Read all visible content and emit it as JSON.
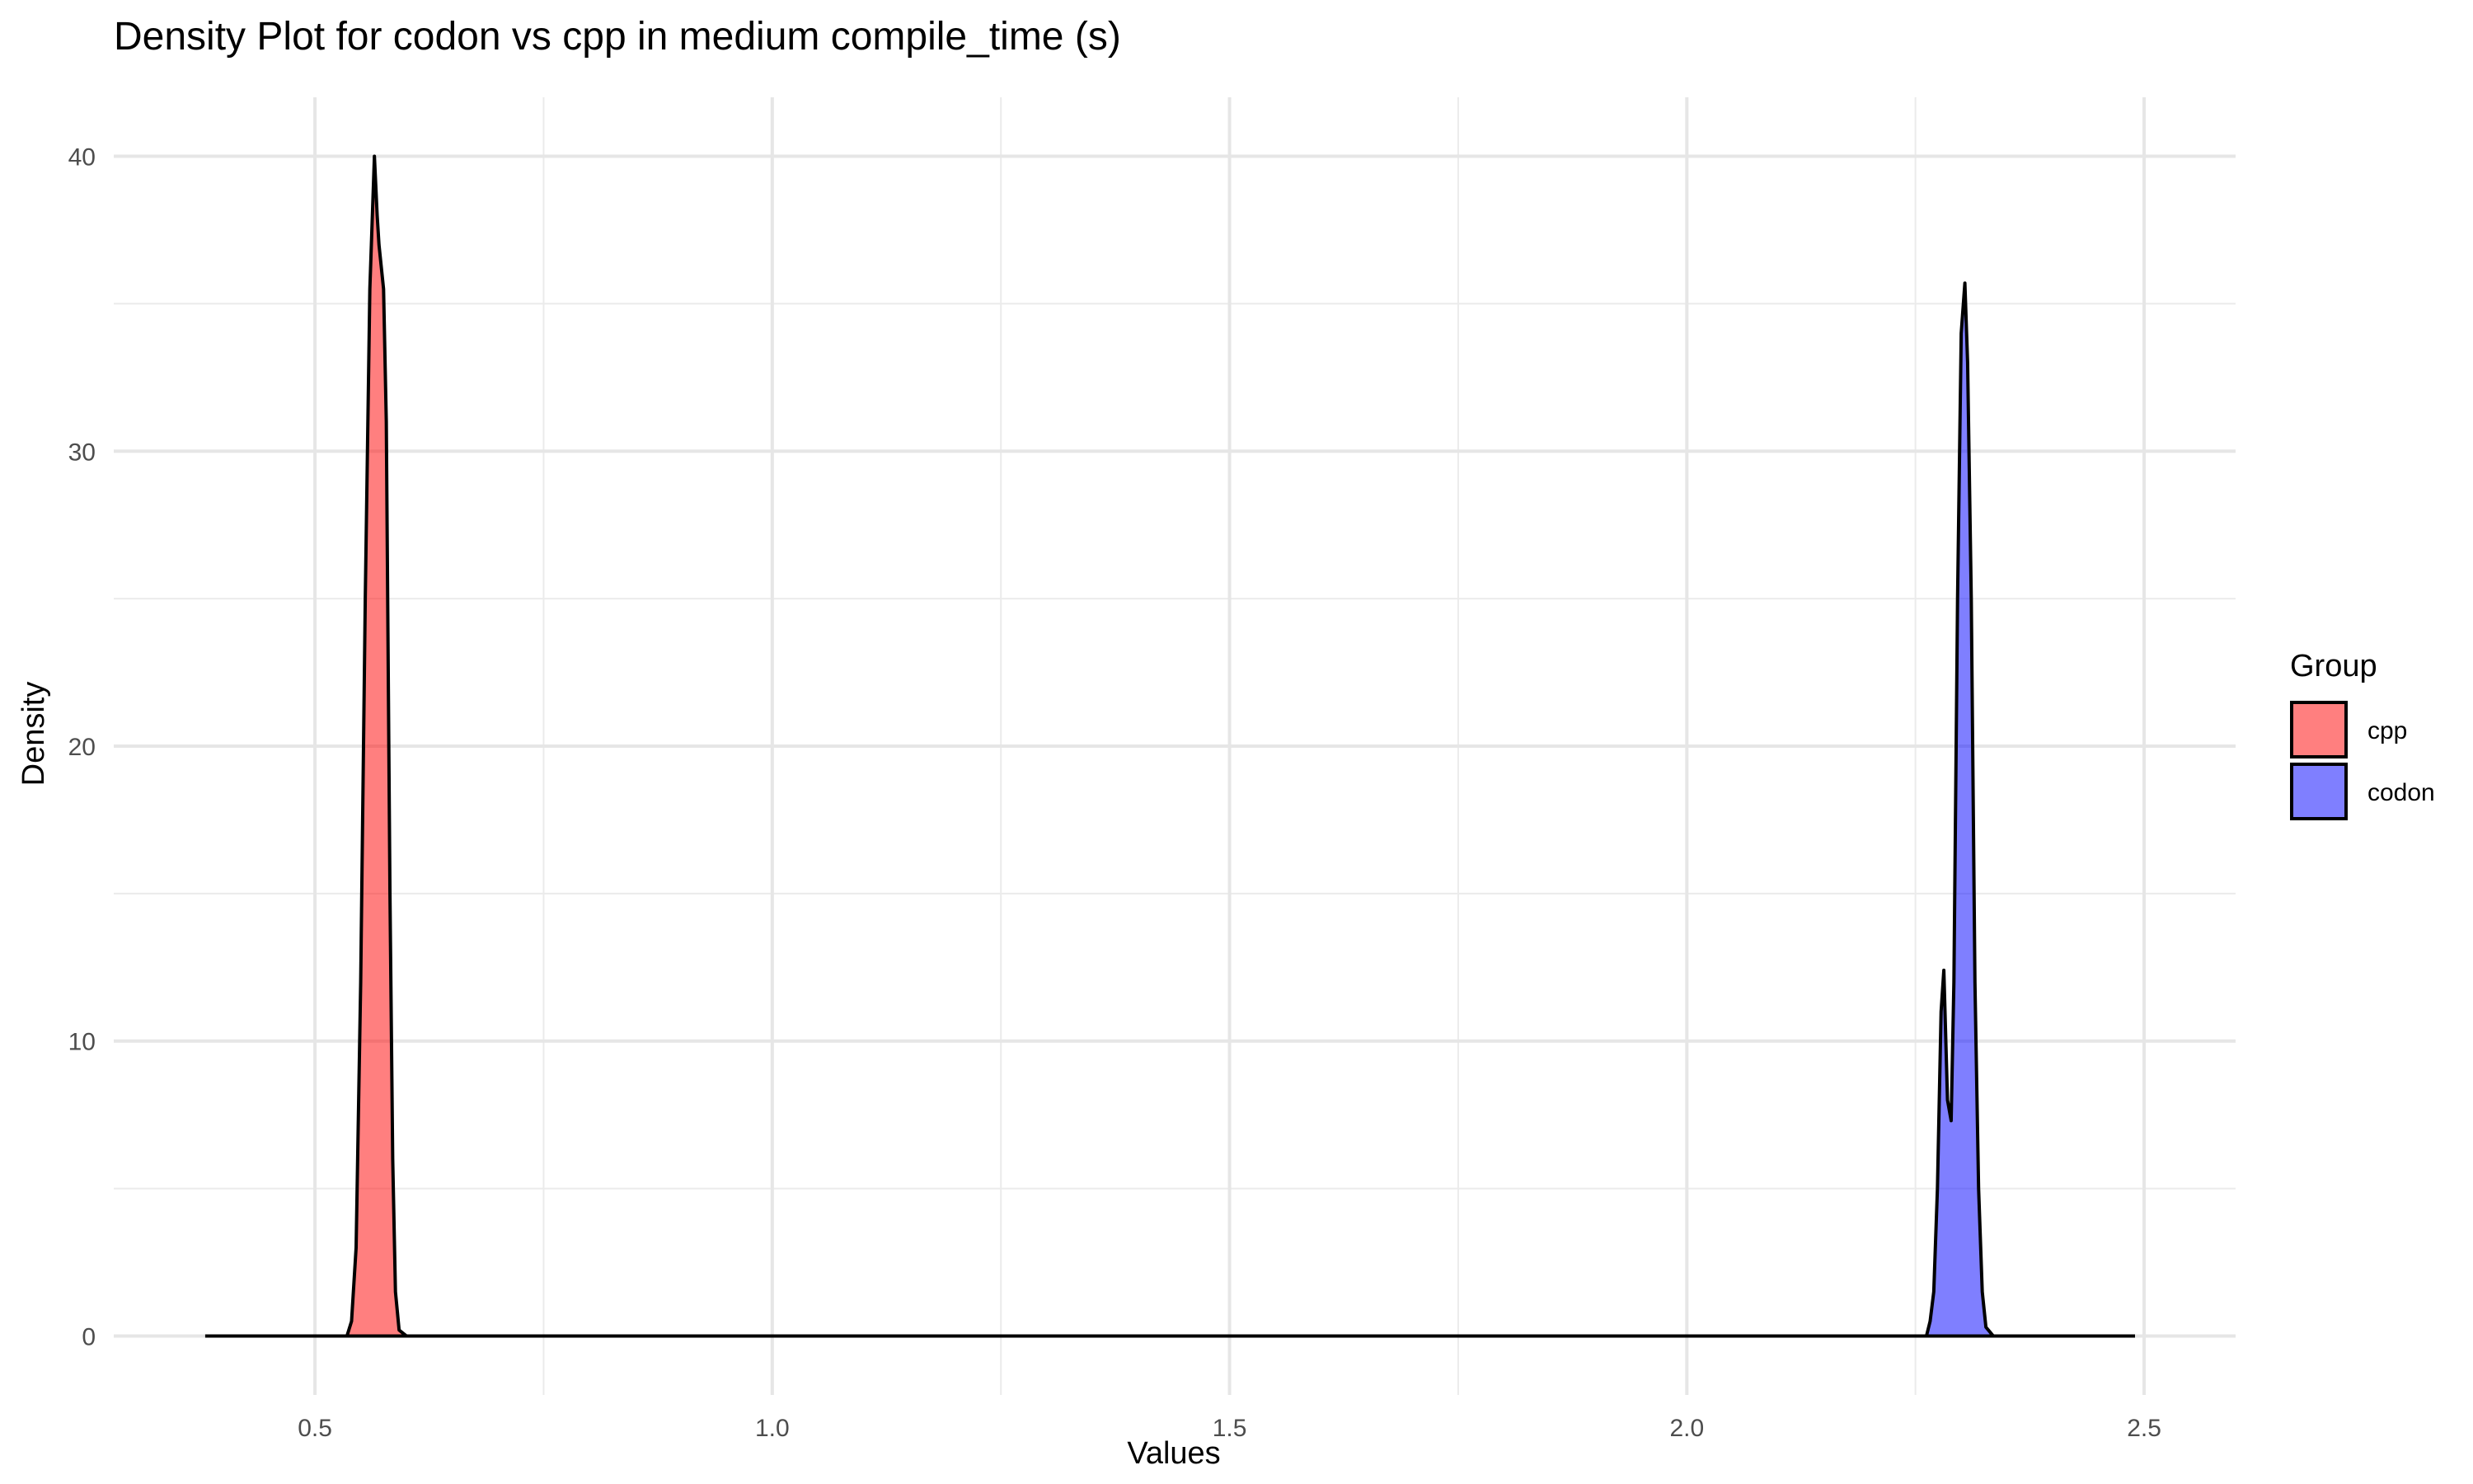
{
  "chart_data": {
    "type": "area",
    "title": "Density Plot for codon vs cpp in medium compile_time (s)",
    "xlabel": "Values",
    "ylabel": "Density",
    "xlim": [
      0.28,
      2.6
    ],
    "ylim": [
      -2,
      42
    ],
    "x_ticks": [
      0.5,
      1.0,
      1.5,
      2.0,
      2.5
    ],
    "x_tick_labels": [
      "0.5",
      "1.0",
      "1.5",
      "2.0",
      "2.5"
    ],
    "x_minor_ticks": [
      0.75,
      1.25,
      1.75,
      2.25
    ],
    "y_ticks": [
      0,
      10,
      20,
      30,
      40
    ],
    "y_tick_labels": [
      "0",
      "10",
      "20",
      "30",
      "40"
    ],
    "y_minor_ticks": [
      5,
      15,
      25,
      35
    ],
    "grid": true,
    "legend": {
      "title": "Group",
      "position": "right"
    },
    "x_range": [
      0.38,
      2.49
    ],
    "series": [
      {
        "name": "cpp",
        "color": "#FF0000",
        "x": [
          0.535,
          0.54,
          0.545,
          0.55,
          0.555,
          0.56,
          0.565,
          0.568,
          0.57,
          0.575,
          0.578,
          0.582,
          0.585,
          0.588,
          0.592,
          0.6
        ],
        "y": [
          0,
          0.5,
          3,
          12,
          25,
          35.5,
          40,
          38,
          37,
          35.5,
          31,
          15,
          6,
          1.5,
          0.2,
          0
        ]
      },
      {
        "name": "codon",
        "color": "#0000FF",
        "x": [
          2.262,
          2.266,
          2.27,
          2.274,
          2.278,
          2.281,
          2.285,
          2.289,
          2.292,
          2.296,
          2.3,
          2.304,
          2.307,
          2.311,
          2.315,
          2.319,
          2.323,
          2.327,
          2.335
        ],
        "y": [
          0,
          0.5,
          1.5,
          5,
          11,
          12.4,
          8,
          7.3,
          12,
          25,
          34,
          35.7,
          33,
          25,
          12,
          5,
          1.5,
          0.3,
          0
        ]
      }
    ]
  }
}
